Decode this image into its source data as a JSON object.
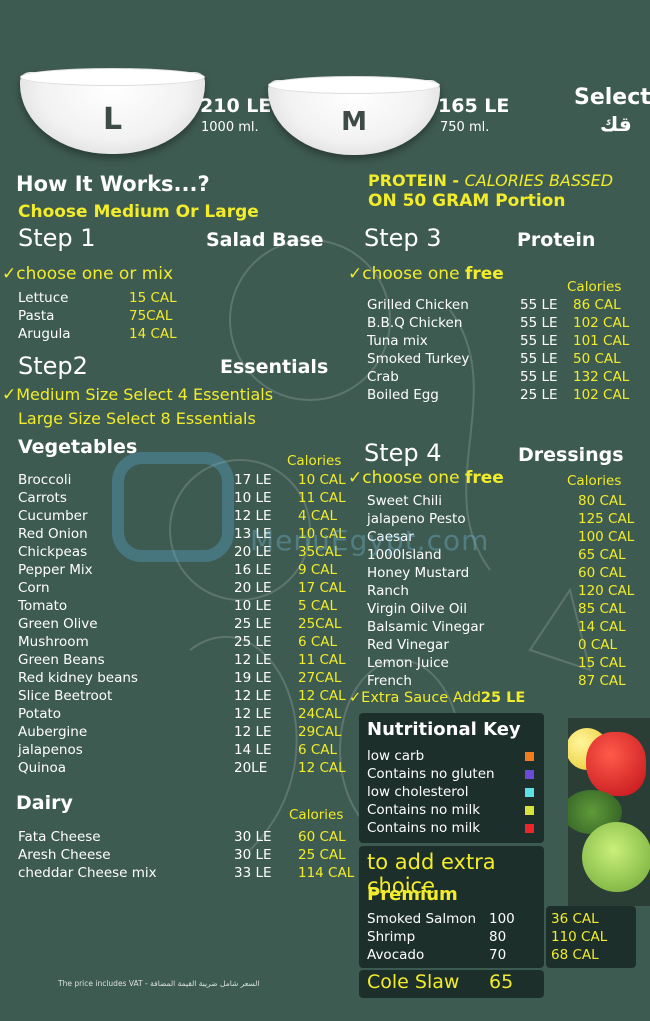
{
  "header": {
    "size_large": {
      "letter": "L",
      "price": "210 LE",
      "volume": "1000 ml."
    },
    "size_medium": {
      "letter": "M",
      "price": "165 LE",
      "volume": "750 ml."
    },
    "select_text": "Select",
    "select_arabic": "قك"
  },
  "how": {
    "title": "How It Works...?",
    "subtitle": "Choose  Medium Or Large"
  },
  "step1": {
    "label": "Step 1",
    "title": "Salad Base",
    "instruction": "choose one or mix",
    "items": [
      {
        "name": "Lettuce",
        "cal": "15 CAL"
      },
      {
        "name": "Pasta",
        "cal": "75CAL"
      },
      {
        "name": "Arugula",
        "cal": "14 CAL"
      }
    ]
  },
  "step2": {
    "label": "Step2",
    "title": "Essentials",
    "instr1": "Medium Size Select 4 Essentials",
    "instr2": "Large Size Select 8 Essentials"
  },
  "vegetables": {
    "title": "Vegetables",
    "cal_header": "Calories",
    "items": [
      {
        "name": "Broccoli",
        "price": "17 LE",
        "cal": "10 CAL"
      },
      {
        "name": "Carrots",
        "price": "10 LE",
        "cal": "11 CAL"
      },
      {
        "name": "Cucumber",
        "price": "12 LE",
        "cal": "4 CAL"
      },
      {
        "name": "Red Onion",
        "price": "13 LE",
        "cal": "10 CAL"
      },
      {
        "name": "Chickpeas",
        "price": "20 LE",
        "cal": "35CAL"
      },
      {
        "name": "Pepper Mix",
        "price": "16 LE",
        "cal": "9 CAL"
      },
      {
        "name": "Corn",
        "price": "20 LE",
        "cal": "17 CAL"
      },
      {
        "name": "Tomato",
        "price": "10 LE",
        "cal": "5 CAL"
      },
      {
        "name": "Green Olive",
        "price": "25 LE",
        "cal": "25CAL"
      },
      {
        "name": "Mushroom",
        "price": "25 LE",
        "cal": "6 CAL"
      },
      {
        "name": "Green Beans",
        "price": "12 LE",
        "cal": "11 CAL"
      },
      {
        "name": "Red kidney beans",
        "price": "19 LE",
        "cal": "27CAL"
      },
      {
        "name": "Slice Beetroot",
        "price": "12 LE",
        "cal": "12 CAL"
      },
      {
        "name": "Potato",
        "price": "12 LE",
        "cal": "24CAL"
      },
      {
        "name": "Aubergine",
        "price": "12 LE",
        "cal": "29CAL"
      },
      {
        "name": "jalapenos",
        "price": "14 LE",
        "cal": "6 CAL"
      },
      {
        "name": "Quinoa",
        "price": "20LE",
        "cal": "12 CAL"
      }
    ]
  },
  "dairy": {
    "title": "Dairy",
    "cal_header": "Calories",
    "items": [
      {
        "name": "Fata Cheese",
        "price": "30 LE",
        "cal": "60 CAL"
      },
      {
        "name": "Aresh Cheese",
        "price": "30 LE",
        "cal": "25 CAL"
      },
      {
        "name": "cheddar Cheese mix",
        "price": "33 LE",
        "cal": "114 CAL"
      }
    ]
  },
  "vat_note": "The price includes VAT - السعر شامل ضريبة القيمة المضافة",
  "protein_note": {
    "line1_a": "PROTEIN - ",
    "line1_b": "CALORIES BASSED",
    "line2": "ON 50 GRAM Portion"
  },
  "step3": {
    "label": "Step 3",
    "title": "Protein",
    "instr_a": "choose one ",
    "instr_b": "free",
    "cal_header": "Calories",
    "items": [
      {
        "name": "Grilled Chicken",
        "price": "55 LE",
        "cal": "86 CAL"
      },
      {
        "name": "B.B.Q Chicken",
        "price": "55 LE",
        "cal": "102 CAL"
      },
      {
        "name": "Tuna mix",
        "price": "55 LE",
        "cal": "101 CAL"
      },
      {
        "name": "Smoked Turkey",
        "price": "55 LE",
        "cal": "50 CAL"
      },
      {
        "name": "Crab",
        "price": "55 LE",
        "cal": "132 CAL"
      },
      {
        "name": "Boiled Egg",
        "price": "25 LE",
        "cal": "102 CAL"
      }
    ]
  },
  "step4": {
    "label": "Step 4",
    "title": "Dressings",
    "instr_a": "choose one ",
    "instr_b": "free",
    "cal_header": "Calories",
    "items": [
      {
        "name": "Sweet Chili",
        "cal": "80 CAL"
      },
      {
        "name": "jalapeno Pesto",
        "cal": "125 CAL"
      },
      {
        "name": "Caesar",
        "cal": "100 CAL"
      },
      {
        "name": "1000Island",
        "cal": "65 CAL"
      },
      {
        "name": "Honey Mustard",
        "cal": "60 CAL"
      },
      {
        "name": "Ranch",
        "cal": "120 CAL"
      },
      {
        "name": "Virgin Oilve Oil",
        "cal": "85 CAL"
      },
      {
        "name": "Balsamic Vinegar",
        "cal": "14 CAL"
      },
      {
        "name": "Red Vinegar",
        "cal": "0  CAL"
      },
      {
        "name": "Lemon Juice",
        "cal": "15  CAL"
      },
      {
        "name": "French",
        "cal": "87 CAL"
      }
    ],
    "extra_a": "Extra Sauce Add",
    "extra_b": "25 LE"
  },
  "nutritional_key": {
    "title": "Nutritional Key",
    "items": [
      {
        "label": "low carb",
        "color": "#f07d1e"
      },
      {
        "label": "Contains no gluten",
        "color": "#6a4bd8"
      },
      {
        "label": "low cholesterol",
        "color": "#5fe0e6"
      },
      {
        "label": "Contains no milk",
        "color": "#d7e23a"
      },
      {
        "label": "Contains no milk",
        "color": "#e8262c"
      }
    ]
  },
  "extra": {
    "title": "to add extra choice",
    "premium": "Premium",
    "items": [
      {
        "name": "Smoked Salmon",
        "price": "100",
        "cal": "36 CAL"
      },
      {
        "name": "Shrimp",
        "price": "80",
        "cal": "110 CAL"
      },
      {
        "name": "Avocado",
        "price": "70",
        "cal": "68 CAL"
      }
    ],
    "coleslaw_name": "Cole Slaw",
    "coleslaw_price": "65"
  },
  "watermark": "MenuEgypt.com",
  "colors": {
    "background": "#3e5b51",
    "accent": "#f2ec2a",
    "panel": "#1d2f2b"
  }
}
